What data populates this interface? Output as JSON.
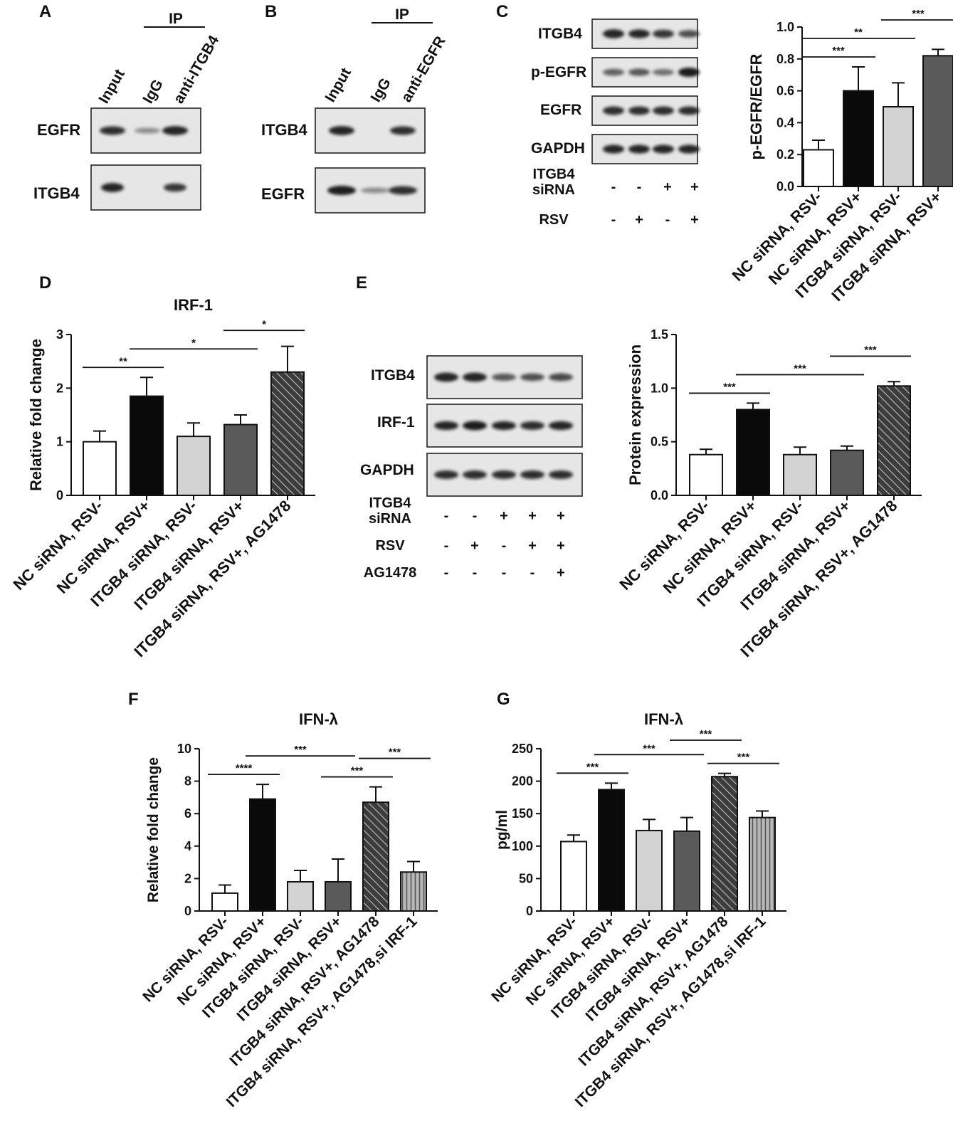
{
  "colors": {
    "white": "#ffffff",
    "black": "#0a0a0a",
    "light_gray": "#d3d3d3",
    "dark_gray": "#5a5a5a",
    "hatched": "#3c3c3c",
    "vertical_stripe": "#9a9a9a",
    "blot_bg": "#e6e6e6",
    "band": "#1a1a1a"
  },
  "panels": {
    "A": {
      "letter": "A",
      "ip_label": "IP",
      "lanes": [
        "Input",
        "IgG",
        "anti-ITGB4"
      ],
      "rows": [
        {
          "label": "EGFR",
          "band_intensity": [
            0.85,
            0.25,
            0.95
          ]
        },
        {
          "label": "ITGB4",
          "band_intensity": [
            0.95,
            0.0,
            0.8
          ]
        }
      ]
    },
    "B": {
      "letter": "B",
      "ip_label": "IP",
      "lanes": [
        "Input",
        "IgG",
        "anti-EGFR"
      ],
      "rows": [
        {
          "label": "ITGB4",
          "band_intensity": [
            0.95,
            0.0,
            0.85
          ]
        },
        {
          "label": "EGFR",
          "band_intensity": [
            1.0,
            0.25,
            0.85
          ]
        }
      ]
    },
    "C": {
      "letter": "C",
      "rows": [
        {
          "label": "ITGB4",
          "band_intensity": [
            0.95,
            0.9,
            0.8,
            0.65
          ]
        },
        {
          "label": "p-EGFR",
          "band_intensity": [
            0.55,
            0.6,
            0.45,
            1.0
          ]
        },
        {
          "label": "EGFR",
          "band_intensity": [
            0.85,
            0.85,
            0.85,
            0.85
          ]
        },
        {
          "label": "GAPDH",
          "band_intensity": [
            0.9,
            0.9,
            0.9,
            0.9
          ]
        }
      ],
      "conditions": [
        {
          "label": "ITGB4 siRNA",
          "values": [
            "-",
            "-",
            "+",
            "+"
          ]
        },
        {
          "label": "RSV",
          "values": [
            "-",
            "+",
            "-",
            "+"
          ]
        }
      ]
    },
    "E": {
      "letter": "E",
      "rows": [
        {
          "label": "ITGB4",
          "band_intensity": [
            0.95,
            0.95,
            0.6,
            0.65,
            0.7
          ]
        },
        {
          "label": "IRF-1",
          "band_intensity": [
            0.9,
            1.0,
            0.9,
            0.85,
            0.9
          ]
        },
        {
          "label": "GAPDH",
          "band_intensity": [
            0.85,
            0.85,
            0.85,
            0.85,
            0.85
          ]
        }
      ],
      "conditions": [
        {
          "label": "ITGB4 siRNA",
          "values": [
            "-",
            "-",
            "+",
            "+",
            "+"
          ]
        },
        {
          "label": "RSV",
          "values": [
            "-",
            "+",
            "-",
            "+",
            "+"
          ]
        },
        {
          "label": "AG1478",
          "values": [
            "-",
            "-",
            "-",
            "-",
            "+"
          ]
        }
      ]
    },
    "D": {
      "letter": "D"
    },
    "F": {
      "letter": "F"
    },
    "G": {
      "letter": "G"
    }
  },
  "chart_data": [
    {
      "id": "C",
      "type": "bar",
      "title": "",
      "ylabel": "p-EGFR/EGFR",
      "ylim": [
        0,
        1.0
      ],
      "yticks": [
        "0.0",
        "0.2",
        "0.4",
        "0.6",
        "0.8",
        "1.0"
      ],
      "categories": [
        "NC siRNA, RSV-",
        "NC siRNA, RSV+",
        "ITGB4 siRNA, RSV-",
        "ITGB4 siRNA, RSV+"
      ],
      "values": [
        0.23,
        0.6,
        0.5,
        0.82
      ],
      "errors": [
        0.06,
        0.15,
        0.15,
        0.04
      ],
      "fills": [
        "white",
        "black",
        "light_gray",
        "dark_gray"
      ],
      "significance": [
        {
          "from": 0,
          "to": 1,
          "label": "***"
        },
        {
          "from": 0,
          "to": 2,
          "label": "**"
        },
        {
          "from": 2,
          "to": 3,
          "label": "***"
        }
      ]
    },
    {
      "id": "D",
      "type": "bar",
      "title": "IRF-1",
      "ylabel": "Relative fold change",
      "ylim": [
        0,
        3
      ],
      "yticks": [
        "0",
        "1",
        "2",
        "3"
      ],
      "categories": [
        "NC siRNA, RSV-",
        "NC siRNA, RSV+",
        "ITGB4 siRNA, RSV-",
        "ITGB4 siRNA, RSV+",
        "ITGB4 siRNA, RSV+, AG1478"
      ],
      "values": [
        1.0,
        1.85,
        1.1,
        1.32,
        2.3
      ],
      "errors": [
        0.2,
        0.35,
        0.25,
        0.18,
        0.48
      ],
      "fills": [
        "white",
        "black",
        "light_gray",
        "dark_gray",
        "hatched"
      ],
      "significance": [
        {
          "from": 0,
          "to": 1,
          "label": "**"
        },
        {
          "from": 1,
          "to": 3,
          "label": "*"
        },
        {
          "from": 3,
          "to": 4,
          "label": "*"
        }
      ]
    },
    {
      "id": "E",
      "type": "bar",
      "title": "",
      "ylabel": "Protein expression",
      "ylim": [
        0,
        1.5
      ],
      "yticks": [
        "0.0",
        "0.5",
        "1.0",
        "1.5"
      ],
      "categories": [
        "NC siRNA, RSV-",
        "NC siRNA, RSV+",
        "ITGB4 siRNA, RSV-",
        "ITGB4 siRNA, RSV+",
        "ITGB4 siRNA, RSV+, AG1478"
      ],
      "values": [
        0.38,
        0.8,
        0.38,
        0.42,
        1.02
      ],
      "errors": [
        0.05,
        0.06,
        0.07,
        0.04,
        0.04
      ],
      "fills": [
        "white",
        "black",
        "light_gray",
        "dark_gray",
        "hatched"
      ],
      "significance": [
        {
          "from": 0,
          "to": 1,
          "label": "***"
        },
        {
          "from": 1,
          "to": 3,
          "label": "***"
        },
        {
          "from": 3,
          "to": 4,
          "label": "***"
        }
      ]
    },
    {
      "id": "F",
      "type": "bar",
      "title": "IFN-λ",
      "ylabel": "Relative fold change",
      "ylim": [
        0,
        10
      ],
      "yticks": [
        "0",
        "2",
        "4",
        "6",
        "8",
        "10"
      ],
      "categories": [
        "NC siRNA, RSV-",
        "NC siRNA, RSV+",
        "ITGB4 siRNA, RSV-",
        "ITGB4 siRNA, RSV+",
        "ITGB4 siRNA, RSV+, AG1478",
        "ITGB4 siRNA, RSV+, AG1478,si IRF-1"
      ],
      "values": [
        1.1,
        6.9,
        1.8,
        1.8,
        6.7,
        2.4
      ],
      "errors": [
        0.5,
        0.9,
        0.7,
        1.4,
        0.95,
        0.65
      ],
      "fills": [
        "white",
        "black",
        "light_gray",
        "dark_gray",
        "hatched",
        "vertical_stripe"
      ],
      "significance": [
        {
          "from": 0,
          "to": 1,
          "label": "****"
        },
        {
          "from": 1,
          "to": 3,
          "label": "***"
        },
        {
          "from": 3,
          "to": 4,
          "label": "***"
        },
        {
          "from": 4,
          "to": 5,
          "label": "***"
        }
      ]
    },
    {
      "id": "G",
      "type": "bar",
      "title": "IFN-λ",
      "ylabel": "pg/ml",
      "ylim": [
        0,
        250
      ],
      "yticks": [
        "0",
        "50",
        "100",
        "150",
        "200",
        "250"
      ],
      "categories": [
        "NC siRNA, RSV-",
        "NC siRNA, RSV+",
        "ITGB4 siRNA, RSV-",
        "ITGB4 siRNA, RSV+",
        "ITGB4 siRNA, RSV+, AG1478",
        "ITGB4 siRNA, RSV+, AG1478,si IRF-1"
      ],
      "values": [
        107,
        187,
        124,
        123,
        207,
        144
      ],
      "errors": [
        10,
        10,
        17,
        21,
        5,
        10
      ],
      "fills": [
        "white",
        "black",
        "light_gray",
        "dark_gray",
        "hatched",
        "vertical_stripe"
      ],
      "significance": [
        {
          "from": 0,
          "to": 1,
          "label": "***"
        },
        {
          "from": 1,
          "to": 3,
          "label": "***"
        },
        {
          "from": 3,
          "to": 4,
          "label": "***"
        },
        {
          "from": 4,
          "to": 5,
          "label": "***"
        }
      ]
    }
  ]
}
